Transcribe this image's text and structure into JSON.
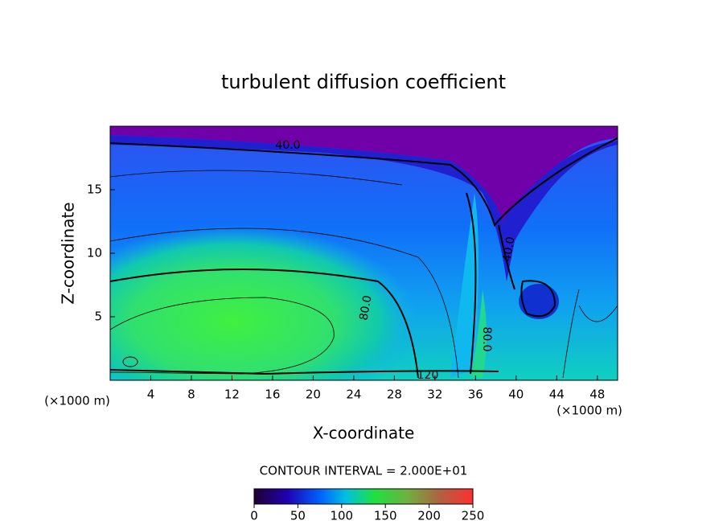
{
  "chart_data": {
    "type": "contour",
    "title": "turbulent diffusion coefficient",
    "x_label": "X-coordinate",
    "y_label": "Z-coordinate",
    "x_unit": "(×1000 m)",
    "y_unit": "(×1000 m)",
    "xlim": [
      0,
      50
    ],
    "xticks": [
      4,
      8,
      12,
      16,
      20,
      24,
      28,
      32,
      36,
      40,
      44,
      48
    ],
    "ylim": [
      0,
      20
    ],
    "yticks": [
      5,
      10,
      15
    ],
    "contour_labels": [
      "40.0",
      "80.0",
      "40.0",
      "80.0",
      "120"
    ],
    "contour_interval": "CONTOUR INTERVAL = 2.000E+01",
    "colorbar": {
      "lim": [
        0,
        250
      ],
      "ticks": [
        0,
        50,
        100,
        150,
        200,
        250
      ]
    }
  }
}
